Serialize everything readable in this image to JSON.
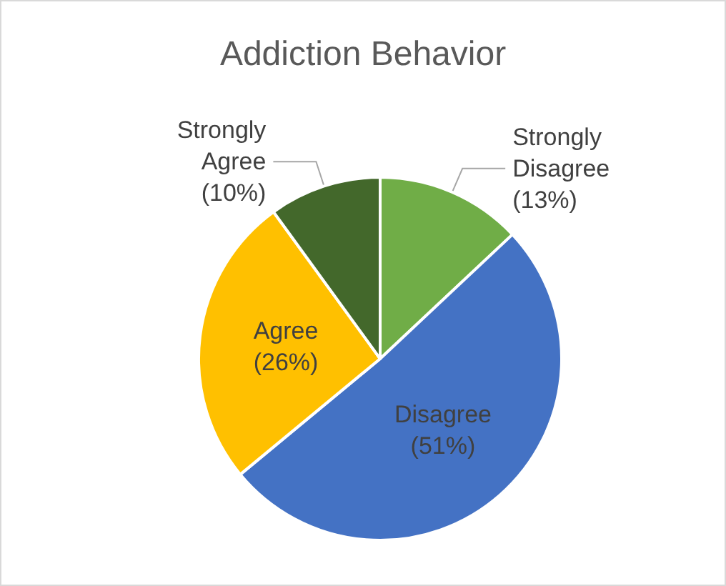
{
  "chart_data": {
    "type": "pie",
    "title": "Addiction Behavior",
    "categories": [
      "Strongly Disagree",
      "Disagree",
      "Agree",
      "Strongly Agree"
    ],
    "values": [
      13,
      51,
      26,
      10
    ],
    "colors": [
      "#70ad47",
      "#4472c4",
      "#ffc000",
      "#43682b"
    ],
    "value_labels": [
      "(13%)",
      "(51%)",
      "(26%)",
      "(10%)"
    ],
    "legend": false
  }
}
